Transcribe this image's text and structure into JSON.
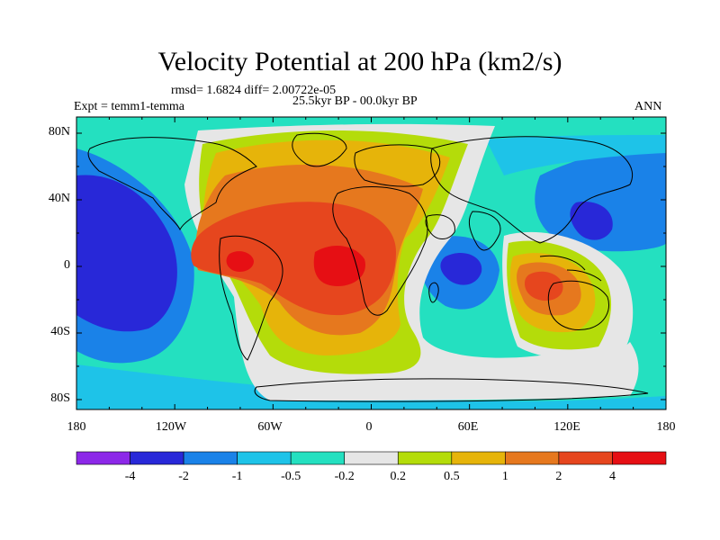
{
  "title": "Velocity Potential at 200 hPa (km2/s)",
  "stats": "rmsd= 1.6824 diff= 2.00722e-05",
  "experiment": "Expt = temm1-temma",
  "period": "25.5kyr BP - 00.0kyr BP",
  "season": "ANN",
  "x_ticks": [
    "180",
    "120W",
    "60W",
    "0",
    "60E",
    "120E",
    "180"
  ],
  "y_ticks": [
    "80N",
    "40N",
    "0",
    "40S",
    "80S"
  ],
  "colorbar": {
    "labels": [
      "-4",
      "-2",
      "-1",
      "-0.5",
      "-0.2",
      "0.2",
      "0.5",
      "1",
      "2",
      "4"
    ],
    "colors": [
      "#8c28e8",
      "#2828d8",
      "#1a82e8",
      "#1ec3e8",
      "#24e0c0",
      "#e6e6e6",
      "#b4dc0a",
      "#e6b40a",
      "#e6781e",
      "#e6461e",
      "#e60f14"
    ]
  },
  "colors": {
    "background": "#24e0c0",
    "coastline": "#000000"
  }
}
